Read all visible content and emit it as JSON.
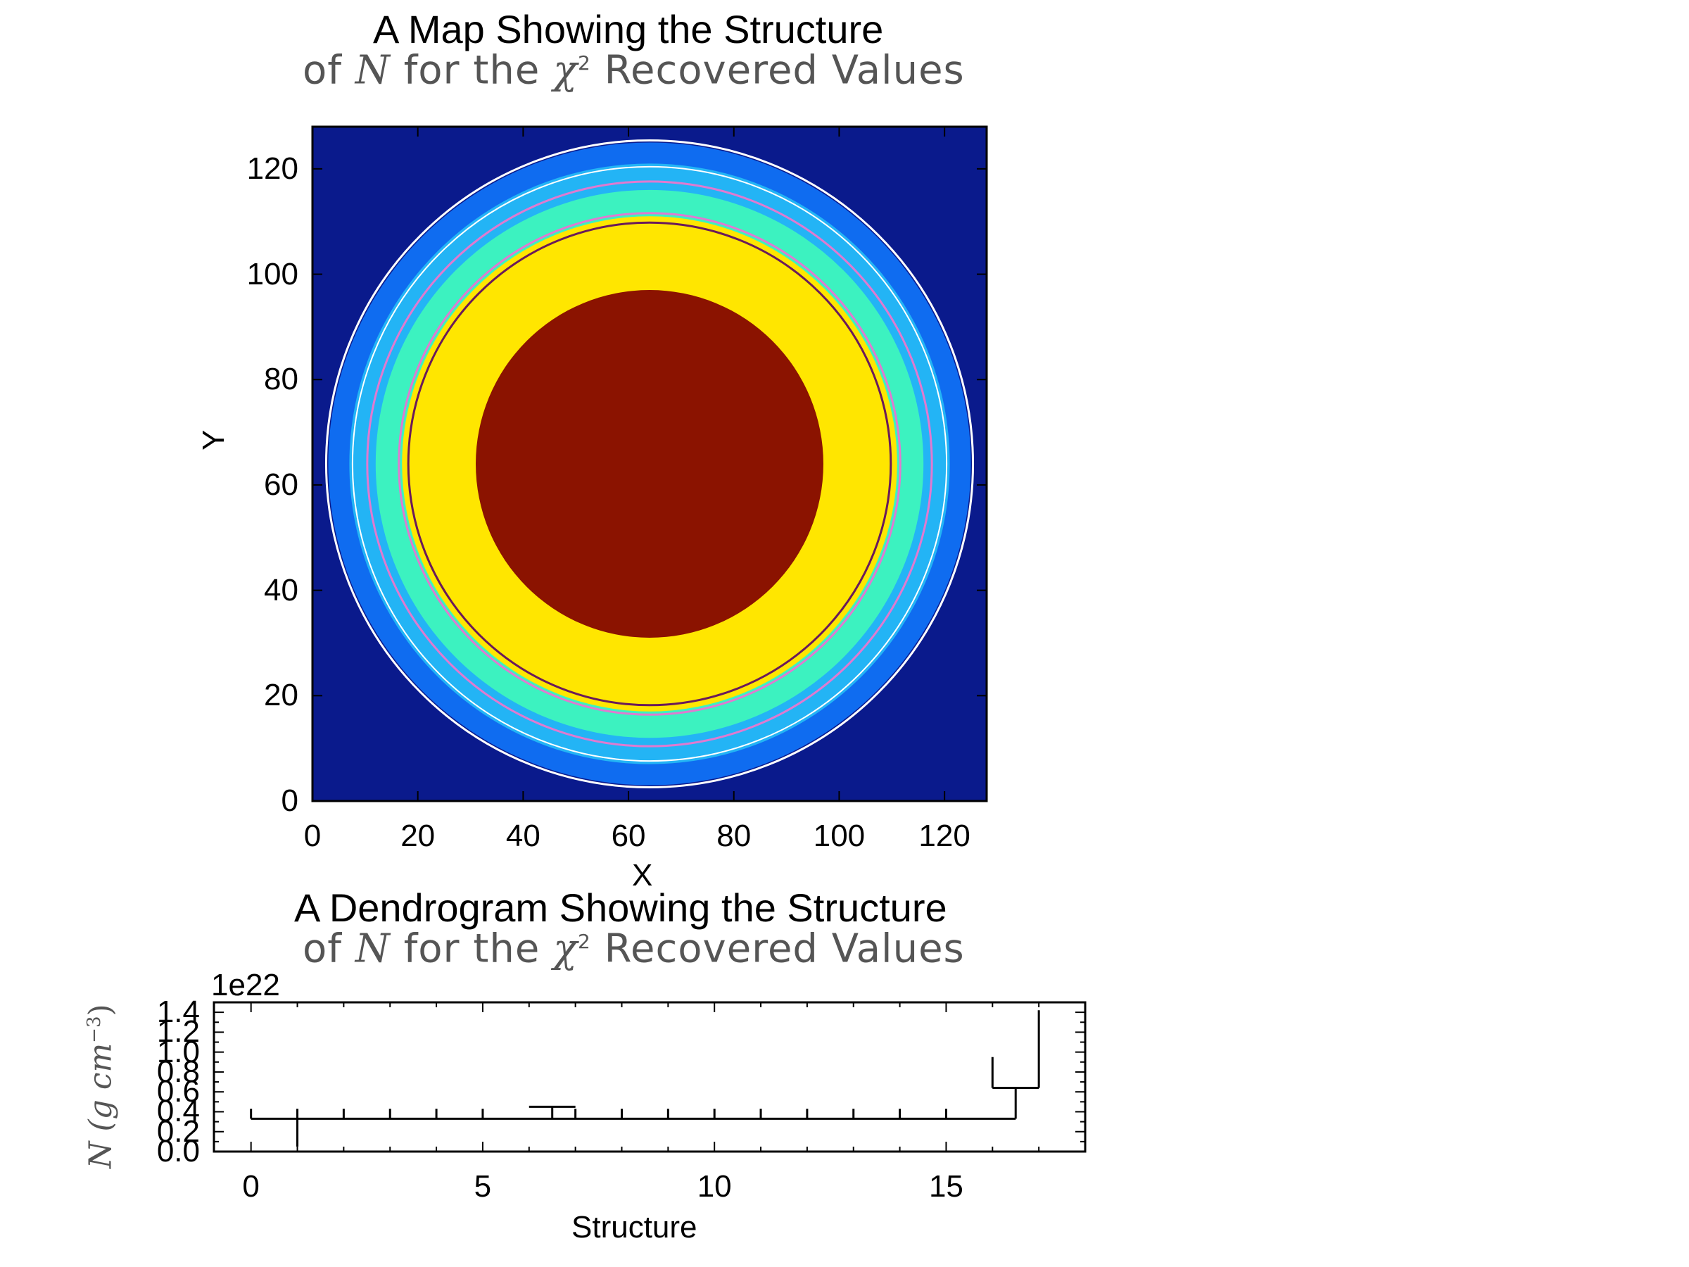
{
  "chart_data": [
    {
      "type": "heatmap",
      "title_line1": "A Map Showing the Structure",
      "title_line2_pre": "of ",
      "title_line2_var": "N",
      "title_line2_mid": " for the ",
      "title_line2_chi": "χ",
      "title_line2_sup": "2",
      "title_line2_post": "  Recovered Values",
      "xlabel": "X",
      "ylabel": "Y",
      "xlim": [
        0,
        128
      ],
      "ylim": [
        0,
        128
      ],
      "xticks": [
        "0",
        "20",
        "40",
        "60",
        "80",
        "100",
        "120"
      ],
      "yticks": [
        "0",
        "20",
        "40",
        "60",
        "80",
        "100",
        "120"
      ],
      "center": [
        64,
        64
      ],
      "colors": {
        "background": "#0a1a8c",
        "ring_outer": "#0f6cf0",
        "ring_mid": "#23b4f5",
        "ring_inner": "#3cf2c0",
        "plateau": "#ffe600",
        "core": "#8b1300",
        "contour_outer": "#ffffff",
        "contour_mid": "#e07ad0",
        "contour_inner": "#6a1a5a"
      },
      "levels": [
        {
          "name": "outer",
          "radius": 61
        },
        {
          "name": "mid",
          "radius": 57
        },
        {
          "name": "inner",
          "radius": 52
        },
        {
          "name": "plateau",
          "radius": 47
        },
        {
          "name": "core",
          "radius": 33
        }
      ]
    },
    {
      "type": "dendrogram",
      "title_line1": "A Dendrogram Showing the Structure",
      "title_line2_pre": "of ",
      "title_line2_var": "N",
      "title_line2_mid": " for the ",
      "title_line2_chi": "χ",
      "title_line2_sup": "2",
      "title_line2_post": "  Recovered Values",
      "xlabel": "Structure",
      "ylabel_var": "N",
      "ylabel_units": "(g cm",
      "ylabel_exp": "−3",
      "ylabel_close": ")",
      "offset_label": "1e22",
      "xlim": [
        -0.8,
        18
      ],
      "ylim": [
        0,
        1.5
      ],
      "xticks": [
        {
          "value": 0,
          "label": "0"
        },
        {
          "value": 5,
          "label": "5"
        },
        {
          "value": 10,
          "label": "10"
        },
        {
          "value": 15,
          "label": "15"
        }
      ],
      "yticks": [
        {
          "value": 0.0,
          "label": "0.0"
        },
        {
          "value": 0.2,
          "label": "0.2"
        },
        {
          "value": 0.4,
          "label": "0.4"
        },
        {
          "value": 0.6,
          "label": "0.6"
        },
        {
          "value": 0.8,
          "label": "0.8"
        },
        {
          "value": 1.0,
          "label": "1.0"
        },
        {
          "value": 1.2,
          "label": "1.2"
        },
        {
          "value": 1.4,
          "label": "1.4"
        }
      ],
      "trunk_level": 0.33,
      "trunk_x_range": [
        0,
        16.5
      ],
      "leaves": [
        {
          "x": 1,
          "bottom": 0.05
        },
        {
          "x": 2,
          "top": 0.43
        },
        {
          "x": 3,
          "top": 0.43
        },
        {
          "x": 4,
          "top": 0.43
        },
        {
          "x": 5,
          "top": 0.43
        },
        {
          "x": 7,
          "top": 0.43
        },
        {
          "x": 8,
          "top": 0.43
        },
        {
          "x": 9,
          "top": 0.43
        },
        {
          "x": 10,
          "top": 0.43
        },
        {
          "x": 11,
          "top": 0.43
        },
        {
          "x": 12,
          "top": 0.43
        },
        {
          "x": 13,
          "top": 0.43
        },
        {
          "x": 14,
          "top": 0.43
        },
        {
          "x": 15,
          "top": 0.43
        }
      ],
      "branch_a": {
        "x": 6.5,
        "join": 0.33,
        "level": 0.45,
        "span": [
          6,
          7
        ]
      },
      "branch_b": {
        "x": 16.5,
        "join": 0.33,
        "level": 0.64,
        "span": [
          16,
          17
        ],
        "left_top": 0.95,
        "right_top": 1.42
      }
    }
  ]
}
